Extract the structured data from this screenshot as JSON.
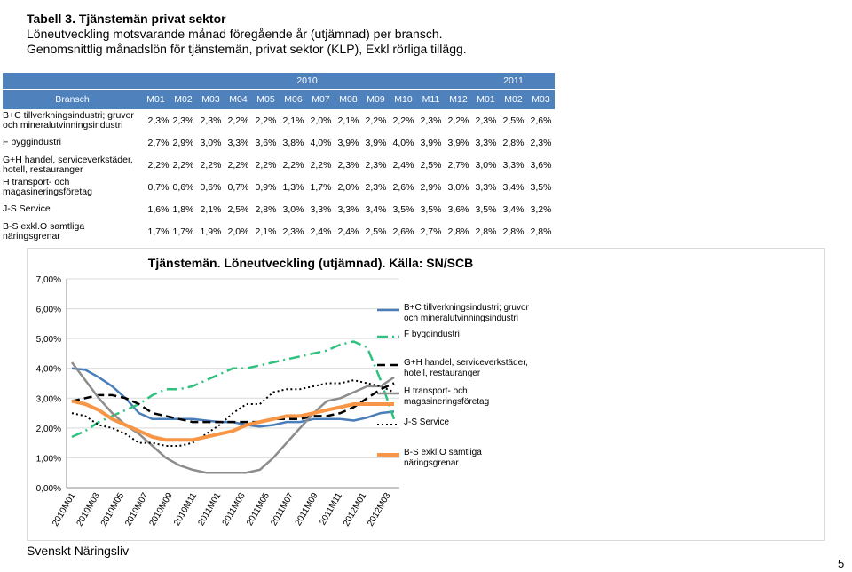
{
  "header": {
    "title": "Tabell 3. Tjänstemän privat sektor",
    "line2": "Löneutveckling motsvarande månad föregående år (utjämnad) per bransch.",
    "line3": "Genomsnittlig månadslön för tjänstemän, privat sektor (KLP), Exkl rörliga tillägg."
  },
  "table": {
    "years": [
      "2010",
      "2011"
    ],
    "branch_label": "Bransch",
    "months": [
      "M01",
      "M02",
      "M03",
      "M04",
      "M05",
      "M06",
      "M07",
      "M08",
      "M09",
      "M10",
      "M11",
      "M12",
      "M01",
      "M02",
      "M03"
    ],
    "rows": [
      {
        "label": "B+C tillverkningsindustri; gruvor och mineralutvinningsindustri",
        "values": [
          "2,3%",
          "2,3%",
          "2,3%",
          "2,2%",
          "2,2%",
          "2,1%",
          "2,0%",
          "2,1%",
          "2,2%",
          "2,2%",
          "2,3%",
          "2,2%",
          "2,3%",
          "2,5%",
          "2,6%"
        ]
      },
      {
        "label": "F byggindustri",
        "values": [
          "2,7%",
          "2,9%",
          "3,0%",
          "3,3%",
          "3,6%",
          "3,8%",
          "4,0%",
          "3,9%",
          "3,9%",
          "4,0%",
          "3,9%",
          "3,9%",
          "3,3%",
          "2,8%",
          "2,3%"
        ]
      },
      {
        "label": "G+H handel, serviceverkstäder, hotell, restauranger",
        "values": [
          "2,2%",
          "2,2%",
          "2,2%",
          "2,2%",
          "2,2%",
          "2,2%",
          "2,2%",
          "2,3%",
          "2,3%",
          "2,4%",
          "2,5%",
          "2,7%",
          "3,0%",
          "3,3%",
          "3,6%"
        ]
      },
      {
        "label": "H transport- och magasineringsföretag",
        "values": [
          "0,7%",
          "0,6%",
          "0,6%",
          "0,7%",
          "0,9%",
          "1,3%",
          "1,7%",
          "2,0%",
          "2,3%",
          "2,6%",
          "2,9%",
          "3,0%",
          "3,3%",
          "3,4%",
          "3,5%"
        ]
      },
      {
        "label": "J-S Service",
        "values": [
          "1,6%",
          "1,8%",
          "2,1%",
          "2,5%",
          "2,8%",
          "3,0%",
          "3,3%",
          "3,3%",
          "3,4%",
          "3,5%",
          "3,5%",
          "3,6%",
          "3,5%",
          "3,4%",
          "3,2%"
        ]
      },
      {
        "label": "B-S exkl.O samtliga näringsgrenar",
        "values": [
          "1,7%",
          "1,7%",
          "1,9%",
          "2,0%",
          "2,1%",
          "2,3%",
          "2,4%",
          "2,4%",
          "2,5%",
          "2,6%",
          "2,7%",
          "2,8%",
          "2,8%",
          "2,8%",
          "2,8%"
        ]
      }
    ]
  },
  "chart_data": {
    "type": "line",
    "title": "Tjänstemän. Löneutveckling (utjämnad). Källa: SN/SCB",
    "ylim": [
      0,
      7
    ],
    "yticks": [
      "0,00%",
      "1,00%",
      "2,00%",
      "3,00%",
      "4,00%",
      "5,00%",
      "6,00%",
      "7,00%"
    ],
    "x_labels": [
      "2010M01",
      "2010M03",
      "2010M05",
      "2010M07",
      "2010M09",
      "2010M11",
      "2011M01",
      "2011M03",
      "2011M05",
      "2011M07",
      "2011M09",
      "2011M11",
      "2012M01",
      "2012M03"
    ],
    "grid": true,
    "legend_position": "right",
    "colors": {
      "bc": "#4a7ebb",
      "f": "#2ec27e",
      "gh": "#000000",
      "h": "#8c8c8c",
      "js": "#000000",
      "bs": "#f79646"
    },
    "series": [
      {
        "name": "B+C tillverkningsindustri; gruvor och mineralutvinningsindustri",
        "key": "bc",
        "values": [
          4.0,
          3.95,
          3.7,
          3.4,
          3.0,
          2.5,
          2.3,
          2.3,
          2.3,
          2.3,
          2.25,
          2.2,
          2.2,
          2.1,
          2.05,
          2.1,
          2.2,
          2.2,
          2.3,
          2.3,
          2.3,
          2.25,
          2.35,
          2.5,
          2.55
        ]
      },
      {
        "name": "F byggindustri",
        "key": "f",
        "values": [
          1.7,
          1.9,
          2.2,
          2.4,
          2.6,
          2.8,
          3.1,
          3.3,
          3.3,
          3.4,
          3.6,
          3.8,
          4.0,
          4.0,
          4.1,
          4.2,
          4.3,
          4.4,
          4.5,
          4.6,
          4.8,
          4.9,
          4.7,
          3.6,
          2.3
        ]
      },
      {
        "name": "G+H handel, serviceverkstäder, hotell, restauranger",
        "key": "gh",
        "values": [
          2.9,
          3.0,
          3.1,
          3.1,
          3.0,
          2.8,
          2.5,
          2.4,
          2.3,
          2.2,
          2.2,
          2.2,
          2.2,
          2.2,
          2.2,
          2.3,
          2.3,
          2.3,
          2.4,
          2.4,
          2.5,
          2.7,
          3.0,
          3.3,
          3.5
        ]
      },
      {
        "name": "H transport- och magasineringsföretag",
        "key": "h",
        "values": [
          4.2,
          3.6,
          3.0,
          2.5,
          2.1,
          1.8,
          1.4,
          1.0,
          0.75,
          0.6,
          0.5,
          0.5,
          0.5,
          0.5,
          0.6,
          1.0,
          1.5,
          2.0,
          2.5,
          2.9,
          3.0,
          3.2,
          3.4,
          3.4,
          3.7
        ]
      },
      {
        "name": "J-S Service",
        "key": "js",
        "values": [
          2.5,
          2.4,
          2.1,
          2.0,
          1.8,
          1.5,
          1.5,
          1.4,
          1.4,
          1.5,
          1.8,
          2.1,
          2.5,
          2.8,
          2.8,
          3.2,
          3.3,
          3.3,
          3.4,
          3.5,
          3.5,
          3.6,
          3.5,
          3.4,
          3.2
        ]
      },
      {
        "name": "B-S exkl.O samtliga näringsgrenar",
        "key": "bs",
        "values": [
          2.9,
          2.8,
          2.6,
          2.3,
          2.1,
          1.9,
          1.7,
          1.6,
          1.6,
          1.6,
          1.7,
          1.8,
          1.9,
          2.1,
          2.2,
          2.3,
          2.4,
          2.4,
          2.5,
          2.6,
          2.7,
          2.8,
          2.8,
          2.8,
          2.8
        ]
      }
    ]
  },
  "footer": {
    "org": "Svenskt Näringsliv",
    "page": "5"
  }
}
